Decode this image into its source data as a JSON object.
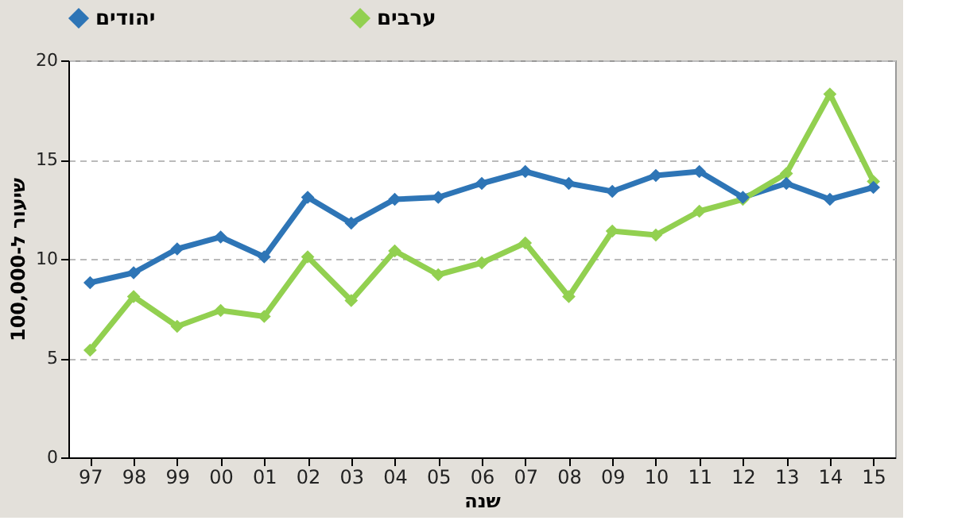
{
  "chart_data": {
    "type": "line",
    "xlabel": "שנה",
    "ylabel": "שיעור ל-100,000",
    "categories": [
      "97",
      "98",
      "99",
      "00",
      "01",
      "02",
      "03",
      "04",
      "05",
      "06",
      "07",
      "08",
      "09",
      "10",
      "11",
      "12",
      "13",
      "14",
      "15"
    ],
    "series": [
      {
        "name": "יהודים",
        "color": "#2e75b6",
        "values": [
          8.8,
          9.3,
          10.5,
          11.1,
          10.1,
          13.1,
          11.8,
          13.0,
          13.1,
          13.8,
          14.4,
          13.8,
          13.4,
          14.2,
          14.4,
          13.1,
          13.8,
          13.0,
          13.6
        ]
      },
      {
        "name": "ערבים",
        "color": "#92d050",
        "values": [
          5.4,
          8.1,
          6.6,
          7.4,
          7.1,
          10.1,
          7.9,
          10.4,
          9.2,
          9.8,
          10.8,
          8.1,
          11.4,
          11.2,
          12.4,
          13.0,
          14.3,
          18.3,
          13.9
        ]
      }
    ],
    "ylim": [
      0,
      20
    ],
    "yticks": [
      0,
      5,
      10,
      15,
      20
    ],
    "grid": "y",
    "legend": "top",
    "marker": "diamond",
    "line_style": "solid"
  }
}
